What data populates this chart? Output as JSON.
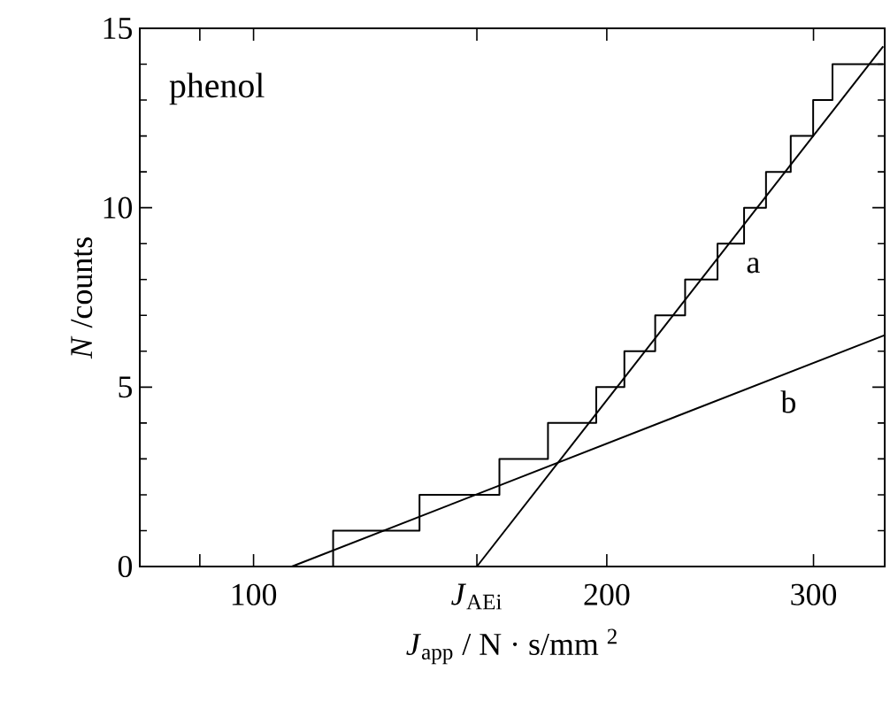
{
  "chart_data": {
    "type": "line",
    "xlabel": "*J*$_{app}$ /  N · s/mm $^{2}$",
    "ylabel": "*N* /counts",
    "log": "x",
    "xlim": [
      80,
      345
    ],
    "ylim": [
      0,
      15
    ],
    "xticks": [
      {
        "value": 90,
        "label": null
      },
      100,
      {
        "value": 155,
        "label": "*J*$_{AEi}$"
      },
      200,
      300
    ],
    "yticks": [
      0,
      5,
      10,
      15
    ],
    "annotations": [
      "phenol"
    ],
    "marker": "none",
    "grid": false,
    "series": [
      {
        "type": "step",
        "color": "#000000",
        "x": [
          116.9,
          116.9,
          138.5,
          162.0,
          178.2,
          195.9,
          207.0,
          219.9,
          233.2,
          248.5,
          261.8,
          273.3,
          286.9,
          299.8,
          311.4,
          344
        ],
        "values": [
          0,
          1,
          2,
          3,
          4,
          5,
          6,
          7,
          8,
          9,
          10,
          11,
          12,
          13,
          14,
          14
        ]
      },
      {
        "name": "a",
        "color": "#000000",
        "x": [
          155,
          344
        ],
        "values": [
          0,
          14.5
        ]
      },
      {
        "name": "b",
        "color": "#000000",
        "x": [
          107.8,
          345
        ],
        "values": [
          0,
          6.45
        ]
      }
    ]
  }
}
